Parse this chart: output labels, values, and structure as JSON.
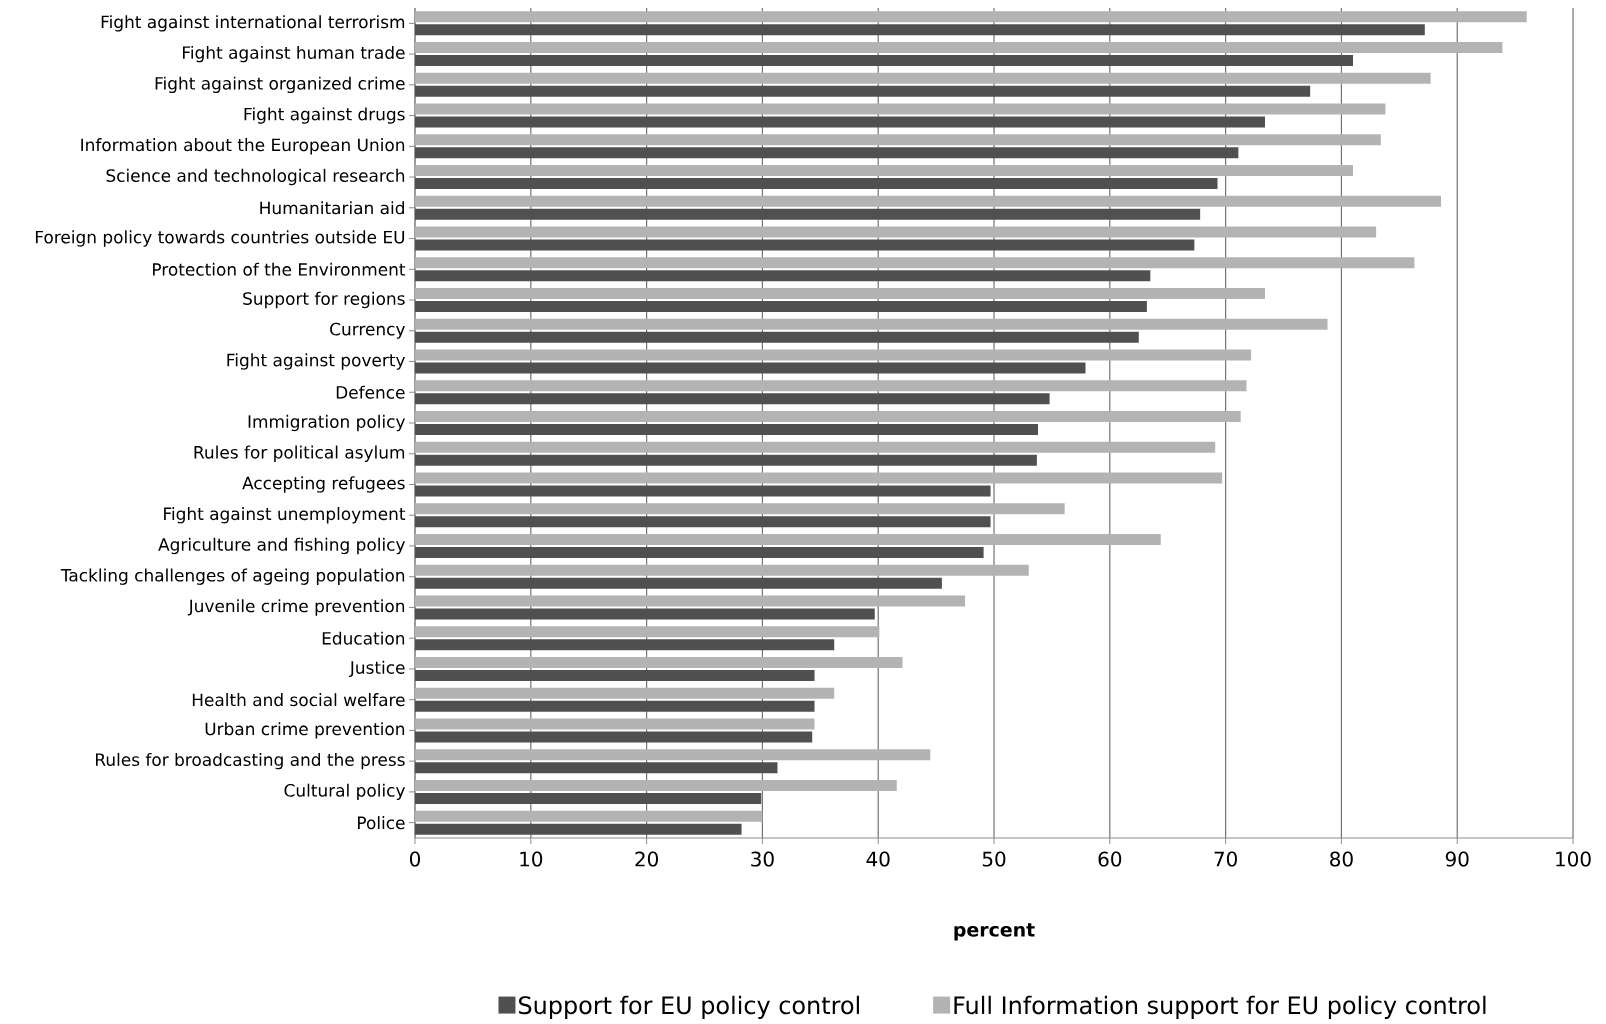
{
  "chart_data": {
    "type": "bar",
    "orientation": "horizontal",
    "xlabel": "**percent**",
    "categories": [
      "Fight against international terrorism",
      "Fight against human trade",
      "Fight against organized crime",
      "Fight against drugs",
      "Information about the European Union",
      "Science and technological research",
      "Humanitarian aid",
      "Foreign policy towards countries outside EU",
      "Protection of the Environment",
      "Support for regions",
      "Currency",
      "Fight against poverty",
      "Defence",
      "Immigration policy",
      "Rules for political asylum",
      "Accepting refugees",
      "Fight against unemployment",
      "Agriculture and fishing policy",
      "Tackling challenges of ageing population",
      "Juvenile crime prevention",
      "Education",
      "Justice",
      "Health and social welfare",
      "Urban crime prevention",
      "Rules for broadcasting and the press",
      "Cultural policy",
      "Police"
    ],
    "series": [
      {
        "name": "Support for EU policy control",
        "color": "#505050",
        "values": [
          87.2,
          81.0,
          77.3,
          73.4,
          71.1,
          69.3,
          67.8,
          67.3,
          63.5,
          63.2,
          62.5,
          57.9,
          54.8,
          53.8,
          53.7,
          49.7,
          49.7,
          49.1,
          45.5,
          39.7,
          36.2,
          34.5,
          34.5,
          34.3,
          31.3,
          29.9,
          28.2
        ]
      },
      {
        "name": "Full Information support for EU policy control",
        "color": "#b3b3b3",
        "values": [
          96.0,
          93.9,
          87.7,
          83.8,
          83.4,
          81.0,
          88.6,
          83.0,
          86.3,
          73.4,
          78.8,
          72.2,
          71.8,
          71.3,
          69.1,
          69.7,
          56.1,
          64.4,
          53.0,
          47.5,
          40.1,
          42.1,
          36.2,
          34.5,
          44.5,
          41.6,
          30.0
        ]
      }
    ],
    "xlim": [
      0,
      100
    ],
    "xticks": [
      0,
      10,
      20,
      30,
      40,
      50,
      60,
      70,
      80,
      90,
      100
    ],
    "grid": "x",
    "legend": "bottom"
  }
}
